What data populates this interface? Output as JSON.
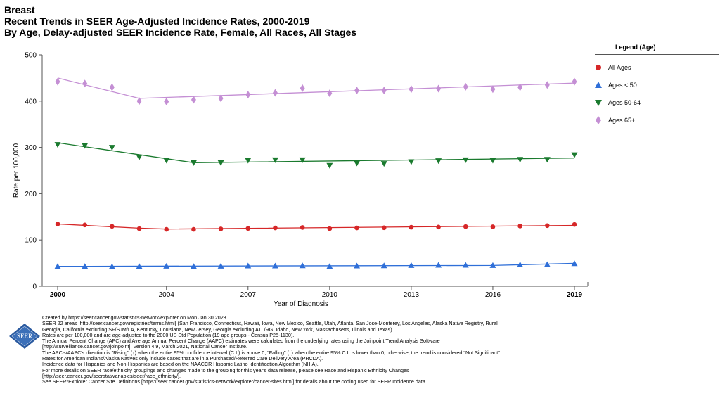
{
  "header": {
    "line1": "Breast",
    "line2": "Recent Trends in SEER Age-Adjusted Incidence Rates, 2000-2019",
    "line3": "By Age, Delay-adjusted SEER Incidence Rate, Female, All Races, All Stages"
  },
  "legend": {
    "title": "Legend (Age)",
    "items": [
      {
        "label": "All Ages",
        "color": "#d62728",
        "marker": "circle"
      },
      {
        "label": "Ages < 50",
        "color": "#2f6fd8",
        "marker": "triangle-up"
      },
      {
        "label": "Ages 50-64",
        "color": "#1a7a2e",
        "marker": "triangle-down"
      },
      {
        "label": "Ages 65+",
        "color": "#c48fd4",
        "marker": "diamond"
      }
    ]
  },
  "logo": {
    "text": "SEER"
  },
  "footnotes": [
    "Created by https://seer.cancer.gov/statistics-network/explorer on Mon Jan 30 2023.",
    "SEER 22 areas [http://seer.cancer.gov/registries/terms.html] (San Francisco, Connecticut, Hawaii, Iowa, New Mexico, Seattle, Utah, Atlanta, San Jose-Monterey, Los Angeles, Alaska Native Registry, Rural Georgia, California excluding SF/SJM/LA, Kentucky, Louisiana, New Jersey, Georgia excluding ATL/RG, Idaho, New York, Massachusetts, Illinois and Texas).",
    "Rates are per 100,000 and are age-adjusted to the 2000 US Std Population (19 age groups - Census P25-1130).",
    "The Annual Percent Change (APC) and Average Annual Percent Change (AAPC) estimates were calculated from the underlying rates using the Joinpoint Trend Analysis Software [http://surveillance.cancer.gov/joinpoint], Version 4.9, March 2021, National Cancer Institute.",
    "The APC's/AAPC's direction is \"Rising\" (↑) when the entire 95% confidence interval (C.I.) is above 0, \"Falling\" (↓) when the entire 95% C.I. is lower than 0, otherwise, the trend is considered \"Not Significant\".",
    "Rates for American Indians/Alaska Natives only include cases that are in a Purchased/Referred Care Delivery Area (PRCDA).",
    "Incidence data for Hispanics and Non-Hispanics are based on the NAACCR Hispanic Latino Identification Algorithm (NHIA).",
    "For more details on SEER race/ethnicity groupings and changes made to the grouping for this year's data release, please see Race and Hispanic Ethnicity Changes [http://seer.cancer.gov/seerstat/variables/seer/race_ethnicity/].",
    "See SEER*Explorer Cancer Site Definitions [https://seer.cancer.gov/statistics-network/explorer/cancer-sites.html] for details about the coding used for SEER Incidence data."
  ],
  "chart_data": {
    "type": "scatter",
    "title": "Recent Trends in SEER Age-Adjusted Incidence Rates, 2000-2019",
    "xlabel": "Year of Diagnosis",
    "ylabel": "Rate per 100,000",
    "xlim": [
      2000,
      2019
    ],
    "ylim": [
      0,
      500
    ],
    "x_ticks": [
      2000,
      2004,
      2007,
      2010,
      2013,
      2016,
      2019
    ],
    "y_ticks": [
      0,
      100,
      200,
      300,
      400,
      500
    ],
    "bold_ticks": [
      2000,
      2019
    ],
    "grid": false,
    "legend_position": "right",
    "x": [
      2000,
      2001,
      2002,
      2003,
      2004,
      2005,
      2006,
      2007,
      2008,
      2009,
      2010,
      2011,
      2012,
      2013,
      2014,
      2015,
      2016,
      2017,
      2018,
      2019
    ],
    "series": [
      {
        "name": "All Ages",
        "color": "#d62728",
        "marker": "circle",
        "values": [
          134.5,
          132.5,
          129.5,
          124.5,
          123,
          123,
          124,
          125,
          126,
          127,
          124.5,
          126,
          126.5,
          127.5,
          128,
          129,
          128.5,
          130,
          131,
          133.5
        ],
        "trend": [
          [
            2000,
            134.5
          ],
          [
            2003,
            125.5
          ],
          [
            2004,
            123.5
          ],
          [
            2019,
            131.5
          ]
        ]
      },
      {
        "name": "Ages < 50",
        "color": "#2f6fd8",
        "marker": "triangle-up",
        "values": [
          43,
          43,
          42.5,
          43,
          43.5,
          43,
          43.5,
          44,
          44,
          44.5,
          43,
          44,
          44.5,
          45,
          45.5,
          45.5,
          45,
          46.5,
          47,
          49
        ],
        "trend": [
          [
            2000,
            43
          ],
          [
            2016,
            45
          ],
          [
            2019,
            49.5
          ]
        ]
      },
      {
        "name": "Ages 50-64",
        "color": "#1a7a2e",
        "marker": "triangle-down",
        "values": [
          306,
          304,
          300,
          279,
          272,
          267,
          267,
          272,
          273,
          273,
          261,
          266,
          265,
          269,
          271,
          273,
          272,
          274,
          274,
          284
        ],
        "trend": [
          [
            2000,
            310
          ],
          [
            2005,
            267
          ],
          [
            2019,
            277
          ]
        ]
      },
      {
        "name": "Ages 65+",
        "color": "#c48fd4",
        "marker": "diamond",
        "values": [
          442,
          438,
          430,
          400,
          399,
          403,
          406,
          414,
          418,
          428,
          417,
          423,
          423,
          426,
          427,
          431,
          426,
          430,
          435,
          442
        ],
        "trend": [
          [
            2000,
            450
          ],
          [
            2003,
            406
          ],
          [
            2019,
            439
          ]
        ]
      }
    ]
  }
}
